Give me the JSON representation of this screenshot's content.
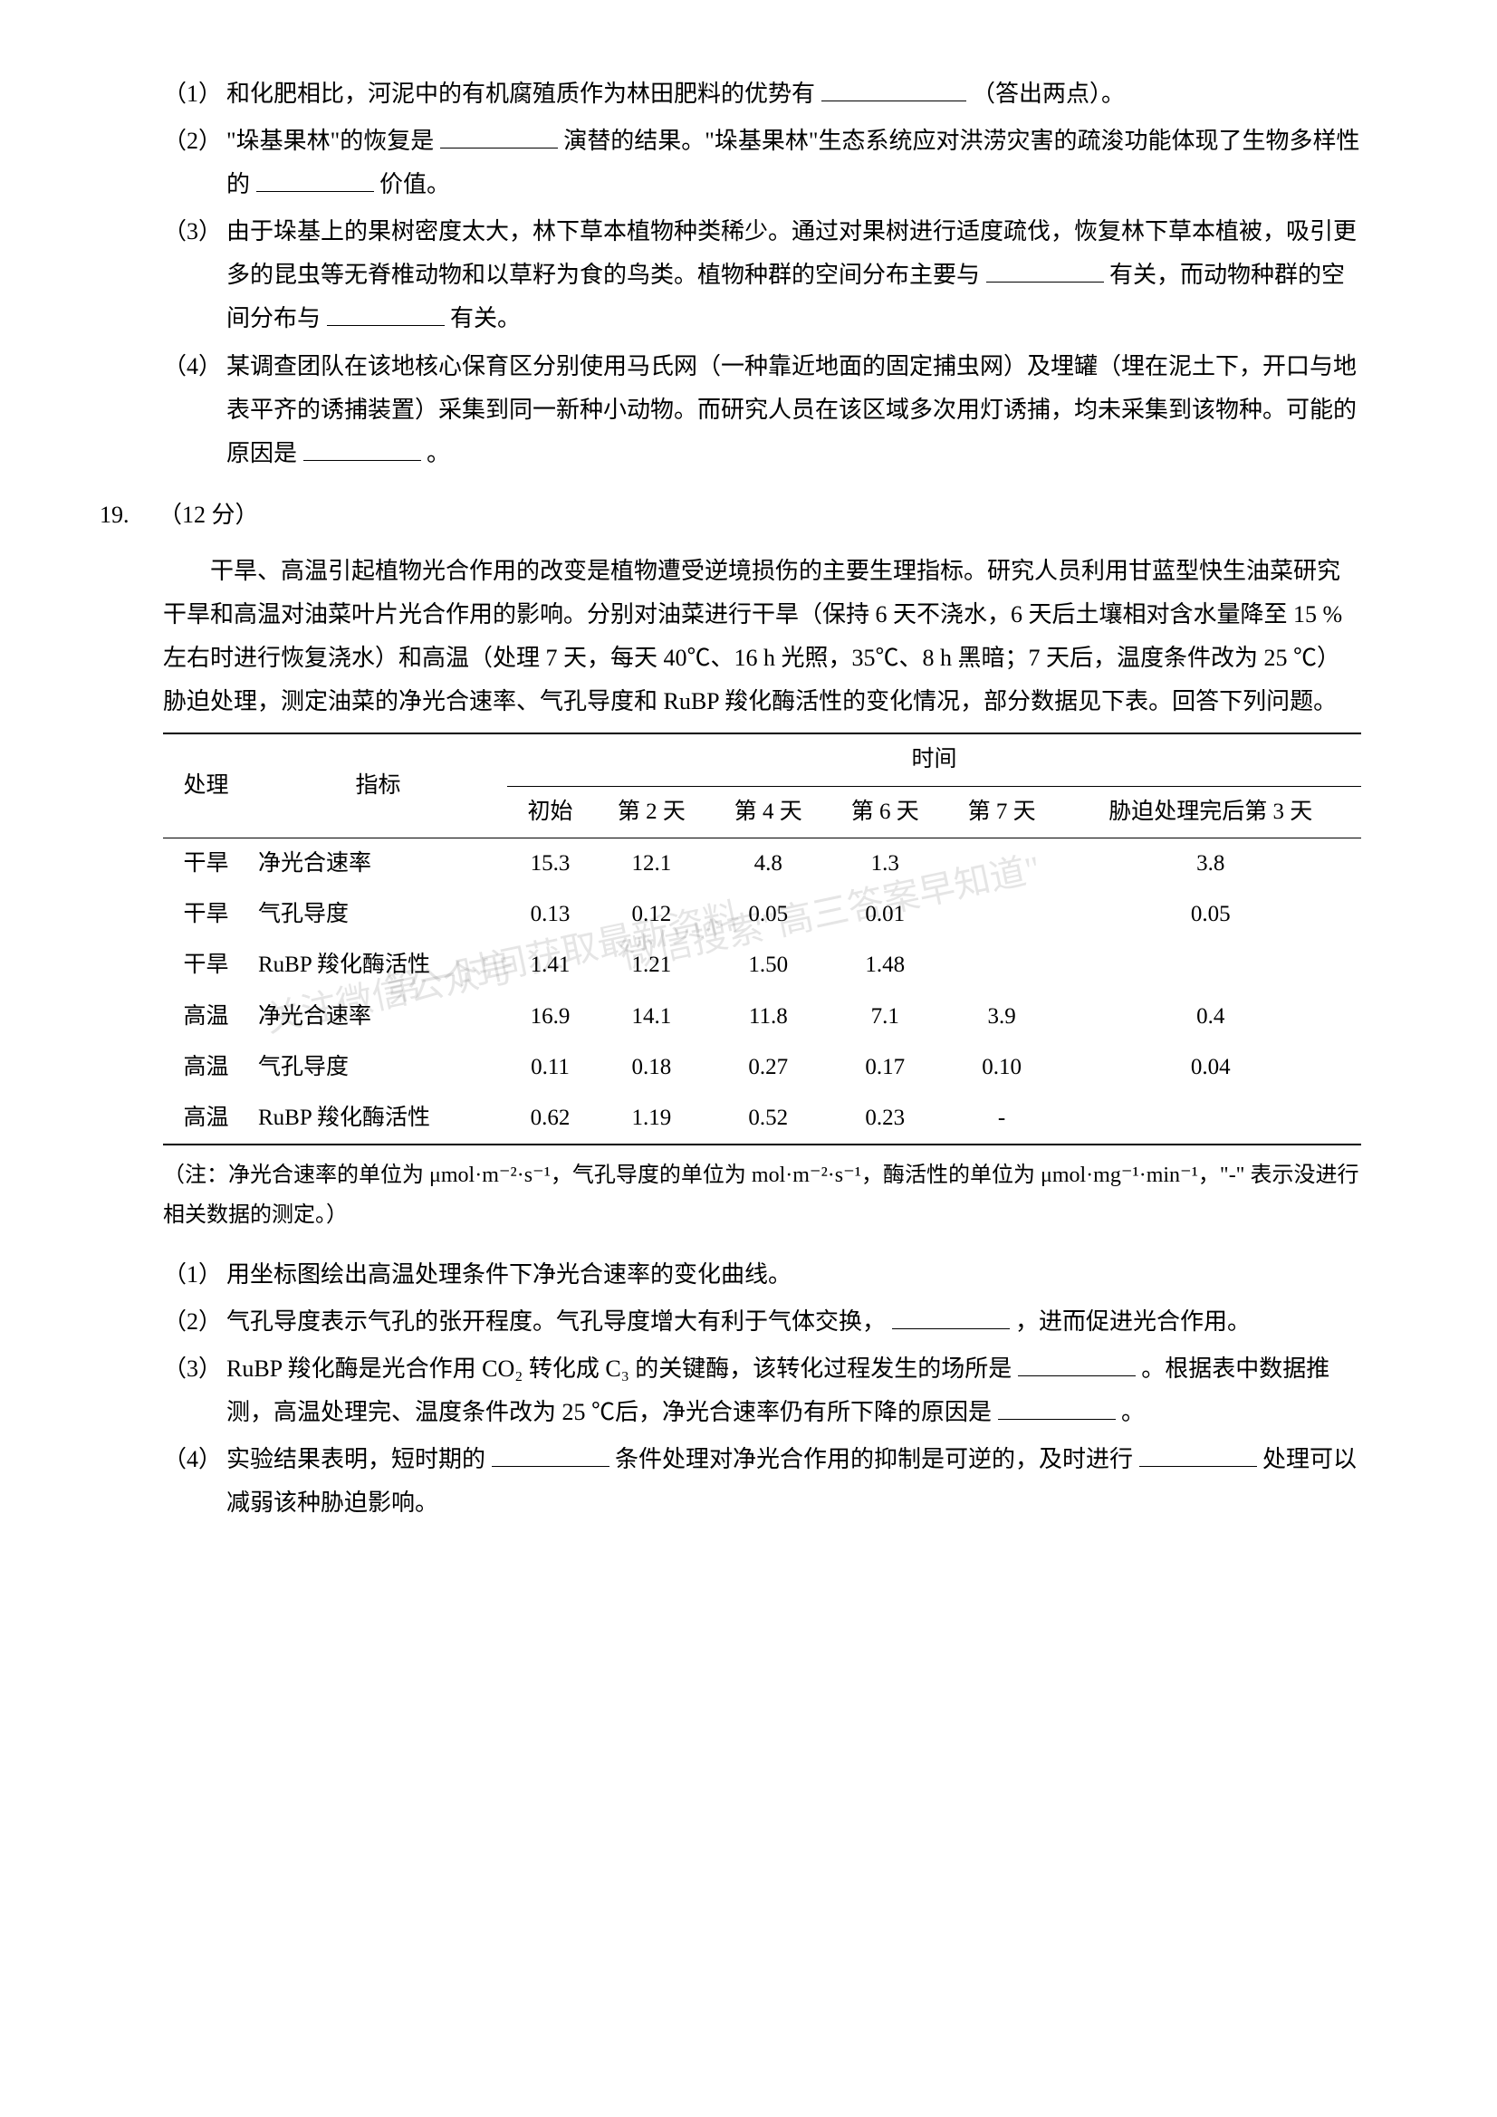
{
  "q18": {
    "item1": {
      "num": "（1）",
      "text_a": "和化肥相比，河泥中的有机腐殖质作为林田肥料的优势有",
      "text_b": "（答出两点）。"
    },
    "item2": {
      "num": "（2）",
      "text_a": "\"垛基果林\"的恢复是",
      "text_b": "演替的结果。\"垛基果林\"生态系统应对洪涝灾害的疏浚功能体现了生物多样性的",
      "text_c": "价值。"
    },
    "item3": {
      "num": "（3）",
      "text_a": "由于垛基上的果树密度太大，林下草本植物种类稀少。通过对果树进行适度疏伐，恢复林下草本植被，吸引更多的昆虫等无脊椎动物和以草籽为食的鸟类。植物种群的空间分布主要与",
      "text_b": "有关，而动物种群的空间分布与",
      "text_c": "有关。"
    },
    "item4": {
      "num": "（4）",
      "text_a": "某调查团队在该地核心保育区分别使用马氏网（一种靠近地面的固定捕虫网）及埋罐（埋在泥土下，开口与地表平齐的诱捕装置）采集到同一新种小动物。而研究人员在该区域多次用灯诱捕，均未采集到该物种。可能的原因是",
      "text_b": "。"
    }
  },
  "q19": {
    "num": "19.",
    "points": "（12 分）",
    "intro": "干旱、高温引起植物光合作用的改变是植物遭受逆境损伤的主要生理指标。研究人员利用甘蓝型快生油菜研究干旱和高温对油菜叶片光合作用的影响。分别对油菜进行干旱（保持 6 天不浇水，6 天后土壤相对含水量降至 15 % 左右时进行恢复浇水）和高温（处理 7 天，每天 40℃、16 h 光照，35℃、8 h 黑暗；7 天后，温度条件改为 25 ℃）胁迫处理，测定油菜的净光合速率、气孔导度和 RuBP 羧化酶活性的变化情况，部分数据见下表。回答下列问题。",
    "table": {
      "header_treatment": "处理",
      "header_index": "指标",
      "header_time": "时间",
      "time_cols": [
        "初始",
        "第 2 天",
        "第 4 天",
        "第 6 天",
        "第 7 天",
        "胁迫处理完后第 3 天"
      ],
      "rows": [
        {
          "t": "干旱",
          "i": "净光合速率",
          "d": [
            "15.3",
            "12.1",
            "4.8",
            "1.3",
            "",
            "3.8"
          ]
        },
        {
          "t": "干旱",
          "i": "气孔导度",
          "d": [
            "0.13",
            "0.12",
            "0.05",
            "0.01",
            "",
            "0.05"
          ]
        },
        {
          "t": "干旱",
          "i": "RuBP 羧化酶活性",
          "d": [
            "1.41",
            "1.21",
            "1.50",
            "1.48",
            "",
            ""
          ]
        },
        {
          "t": "高温",
          "i": "净光合速率",
          "d": [
            "16.9",
            "14.1",
            "11.8",
            "7.1",
            "3.9",
            "0.4"
          ]
        },
        {
          "t": "高温",
          "i": "气孔导度",
          "d": [
            "0.11",
            "0.18",
            "0.27",
            "0.17",
            "0.10",
            "0.04"
          ]
        },
        {
          "t": "高温",
          "i": "RuBP 羧化酶活性",
          "d": [
            "0.62",
            "1.19",
            "0.52",
            "0.23",
            "-",
            ""
          ]
        }
      ]
    },
    "note": "（注：净光合速率的单位为 μmol·m⁻²·s⁻¹，气孔导度的单位为 mol·m⁻²·s⁻¹，酶活性的单位为 μmol·mg⁻¹·min⁻¹，\"-\" 表示没进行相关数据的测定。）",
    "sub1": {
      "num": "（1）",
      "text": "用坐标图绘出高温处理条件下净光合速率的变化曲线。"
    },
    "sub2": {
      "num": "（2）",
      "text_a": "气孔导度表示气孔的张开程度。气孔导度增大有利于气体交换，",
      "text_b": "，进而促进光合作用。"
    },
    "sub3": {
      "num": "（3）",
      "text_a": "RuBP 羧化酶是光合作用 CO₂ 转化成 C₃ 的关键酶，该转化过程发生的场所是",
      "text_b": "。根据表中数据推测，高温处理完、温度条件改为 25 ℃后，净光合速率仍有所下降的原因是",
      "text_c": "。"
    },
    "sub4": {
      "num": "（4）",
      "text_a": "实验结果表明，短时期的",
      "text_b": "条件处理对净光合作用的抑制是可逆的，及时进行",
      "text_c": "处理可以减弱该种胁迫影响。"
    }
  },
  "watermarks": {
    "w1": "微信搜索\"高三答案早知道\"",
    "w2": "第一时间获取最新资料",
    "w3": "关注微信公众号"
  },
  "style": {
    "bg": "#ffffff",
    "text": "#000000",
    "body_fontsize": 26,
    "table_fontsize": 25,
    "note_fontsize": 24,
    "border_color": "#000000"
  }
}
